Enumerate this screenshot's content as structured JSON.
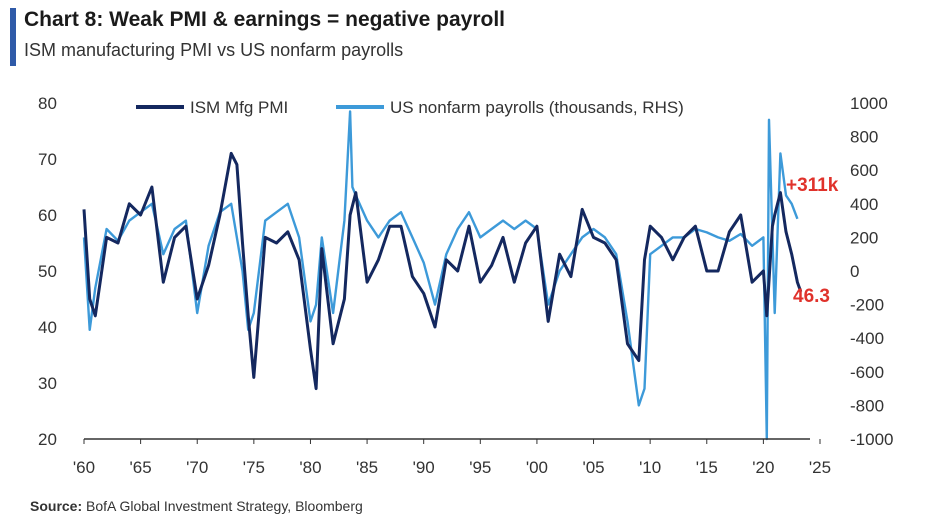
{
  "header": {
    "title": "Chart 8: Weak PMI & earnings = negative payroll",
    "subtitle": "ISM manufacturing PMI vs US nonfarm payrolls"
  },
  "footer": {
    "source_label": "Source:",
    "source_text": "BofA Global Investment Strategy, Bloomberg"
  },
  "colors": {
    "pmi": "#14285f",
    "payrolls": "#3d9ad9",
    "annotation": "#e0322b",
    "axis": "#333333"
  },
  "chart_data": {
    "type": "line",
    "title": "Chart 8: Weak PMI & earnings = negative payroll",
    "subtitle": "ISM manufacturing PMI vs US nonfarm payrolls",
    "x_tick_labels": [
      "'60",
      "'65",
      "'70",
      "'75",
      "'80",
      "'85",
      "'90",
      "'95",
      "'00",
      "'05",
      "'10",
      "'15",
      "'20",
      "'25"
    ],
    "x_tick_years": [
      1960,
      1965,
      1970,
      1975,
      1980,
      1985,
      1990,
      1995,
      2000,
      2005,
      2010,
      2015,
      2020,
      2025
    ],
    "xlim": [
      1960,
      2025
    ],
    "y_left": {
      "ylim": [
        20,
        80
      ],
      "ticks": [
        "80",
        "70",
        "60",
        "50",
        "40",
        "30",
        "20"
      ],
      "tick_values": [
        80,
        70,
        60,
        50,
        40,
        30,
        20
      ]
    },
    "y_right": {
      "ylim": [
        -1000,
        1000
      ],
      "ticks": [
        "1000",
        "800",
        "600",
        "400",
        "200",
        "0",
        "-200",
        "-400",
        "-600",
        "-800",
        "-1000"
      ],
      "tick_values": [
        1000,
        800,
        600,
        400,
        200,
        0,
        -200,
        -400,
        -600,
        -800,
        -1000
      ]
    },
    "legend_position": "top",
    "series": [
      {
        "name": "ISM Mfg PMI",
        "axis": "left",
        "x": [
          1960,
          1960.5,
          1961,
          1962,
          1963,
          1964,
          1965,
          1966,
          1967,
          1968,
          1969,
          1970,
          1971,
          1972,
          1973,
          1973.5,
          1974,
          1974.5,
          1975,
          1976,
          1977,
          1978,
          1979,
          1980,
          1980.5,
          1981,
          1982,
          1983,
          1983.5,
          1984,
          1985,
          1986,
          1987,
          1988,
          1989,
          1990,
          1991,
          1992,
          1993,
          1994,
          1995,
          1996,
          1997,
          1998,
          1999,
          2000,
          2001,
          2002,
          2003,
          2004,
          2005,
          2006,
          2007,
          2008,
          2009,
          2009.5,
          2010,
          2011,
          2012,
          2013,
          2014,
          2015,
          2016,
          2017,
          2018,
          2019,
          2020,
          2020.3,
          2020.8,
          2021,
          2021.5,
          2022,
          2022.5,
          2023,
          2023.3
        ],
        "y": [
          61,
          45,
          42,
          56,
          55,
          62,
          60,
          65,
          48,
          56,
          58,
          45,
          51,
          60,
          71,
          69,
          55,
          42,
          31,
          56,
          55,
          57,
          52,
          36,
          29,
          54,
          37,
          45,
          60,
          64,
          48,
          52,
          58,
          58,
          49,
          46,
          40,
          52,
          50,
          58,
          48,
          51,
          56,
          48,
          55,
          58,
          41,
          53,
          49,
          61,
          56,
          55,
          52,
          37,
          34,
          52,
          58,
          56,
          52,
          56,
          58,
          50,
          50,
          57,
          60,
          48,
          50,
          42,
          58,
          60,
          64,
          57,
          53,
          48,
          46.3
        ]
      },
      {
        "name": "US nonfarm payrolls (thousands, RHS)",
        "axis": "right",
        "x": [
          1960,
          1960.5,
          1961,
          1962,
          1963,
          1964,
          1965,
          1966,
          1967,
          1968,
          1969,
          1970,
          1971,
          1972,
          1973,
          1974,
          1974.5,
          1975,
          1976,
          1977,
          1978,
          1979,
          1980,
          1980.5,
          1981,
          1982,
          1983,
          1983.5,
          1983.7,
          1984,
          1985,
          1986,
          1987,
          1988,
          1989,
          1990,
          1991,
          1992,
          1993,
          1994,
          1995,
          1996,
          1997,
          1998,
          1999,
          2000,
          2001,
          2002,
          2003,
          2004,
          2005,
          2006,
          2007,
          2008,
          2009,
          2009.5,
          2010,
          2011,
          2012,
          2013,
          2014,
          2015,
          2016,
          2017,
          2018,
          2019,
          2020,
          2020.3,
          2020.5,
          2021,
          2021.5,
          2022,
          2022.5,
          2023
        ],
        "y": [
          200,
          -350,
          -100,
          250,
          180,
          300,
          350,
          400,
          100,
          250,
          300,
          -250,
          150,
          350,
          400,
          0,
          -350,
          -250,
          300,
          350,
          400,
          200,
          -300,
          -200,
          200,
          -250,
          300,
          950,
          500,
          450,
          300,
          200,
          300,
          350,
          200,
          50,
          -200,
          100,
          250,
          350,
          200,
          250,
          300,
          250,
          300,
          250,
          -200,
          0,
          100,
          200,
          250,
          200,
          100,
          -300,
          -800,
          -700,
          100,
          150,
          200,
          200,
          250,
          230,
          200,
          180,
          220,
          150,
          200,
          -1000,
          900,
          -250,
          700,
          450,
          400,
          311
        ]
      }
    ],
    "annotations": [
      {
        "text": "+311k",
        "series": "US nonfarm payrolls (thousands, RHS)",
        "x": 2023,
        "y": 311
      },
      {
        "text": "46.3",
        "series": "ISM Mfg PMI",
        "x": 2023.3,
        "y": 46.3
      }
    ]
  }
}
